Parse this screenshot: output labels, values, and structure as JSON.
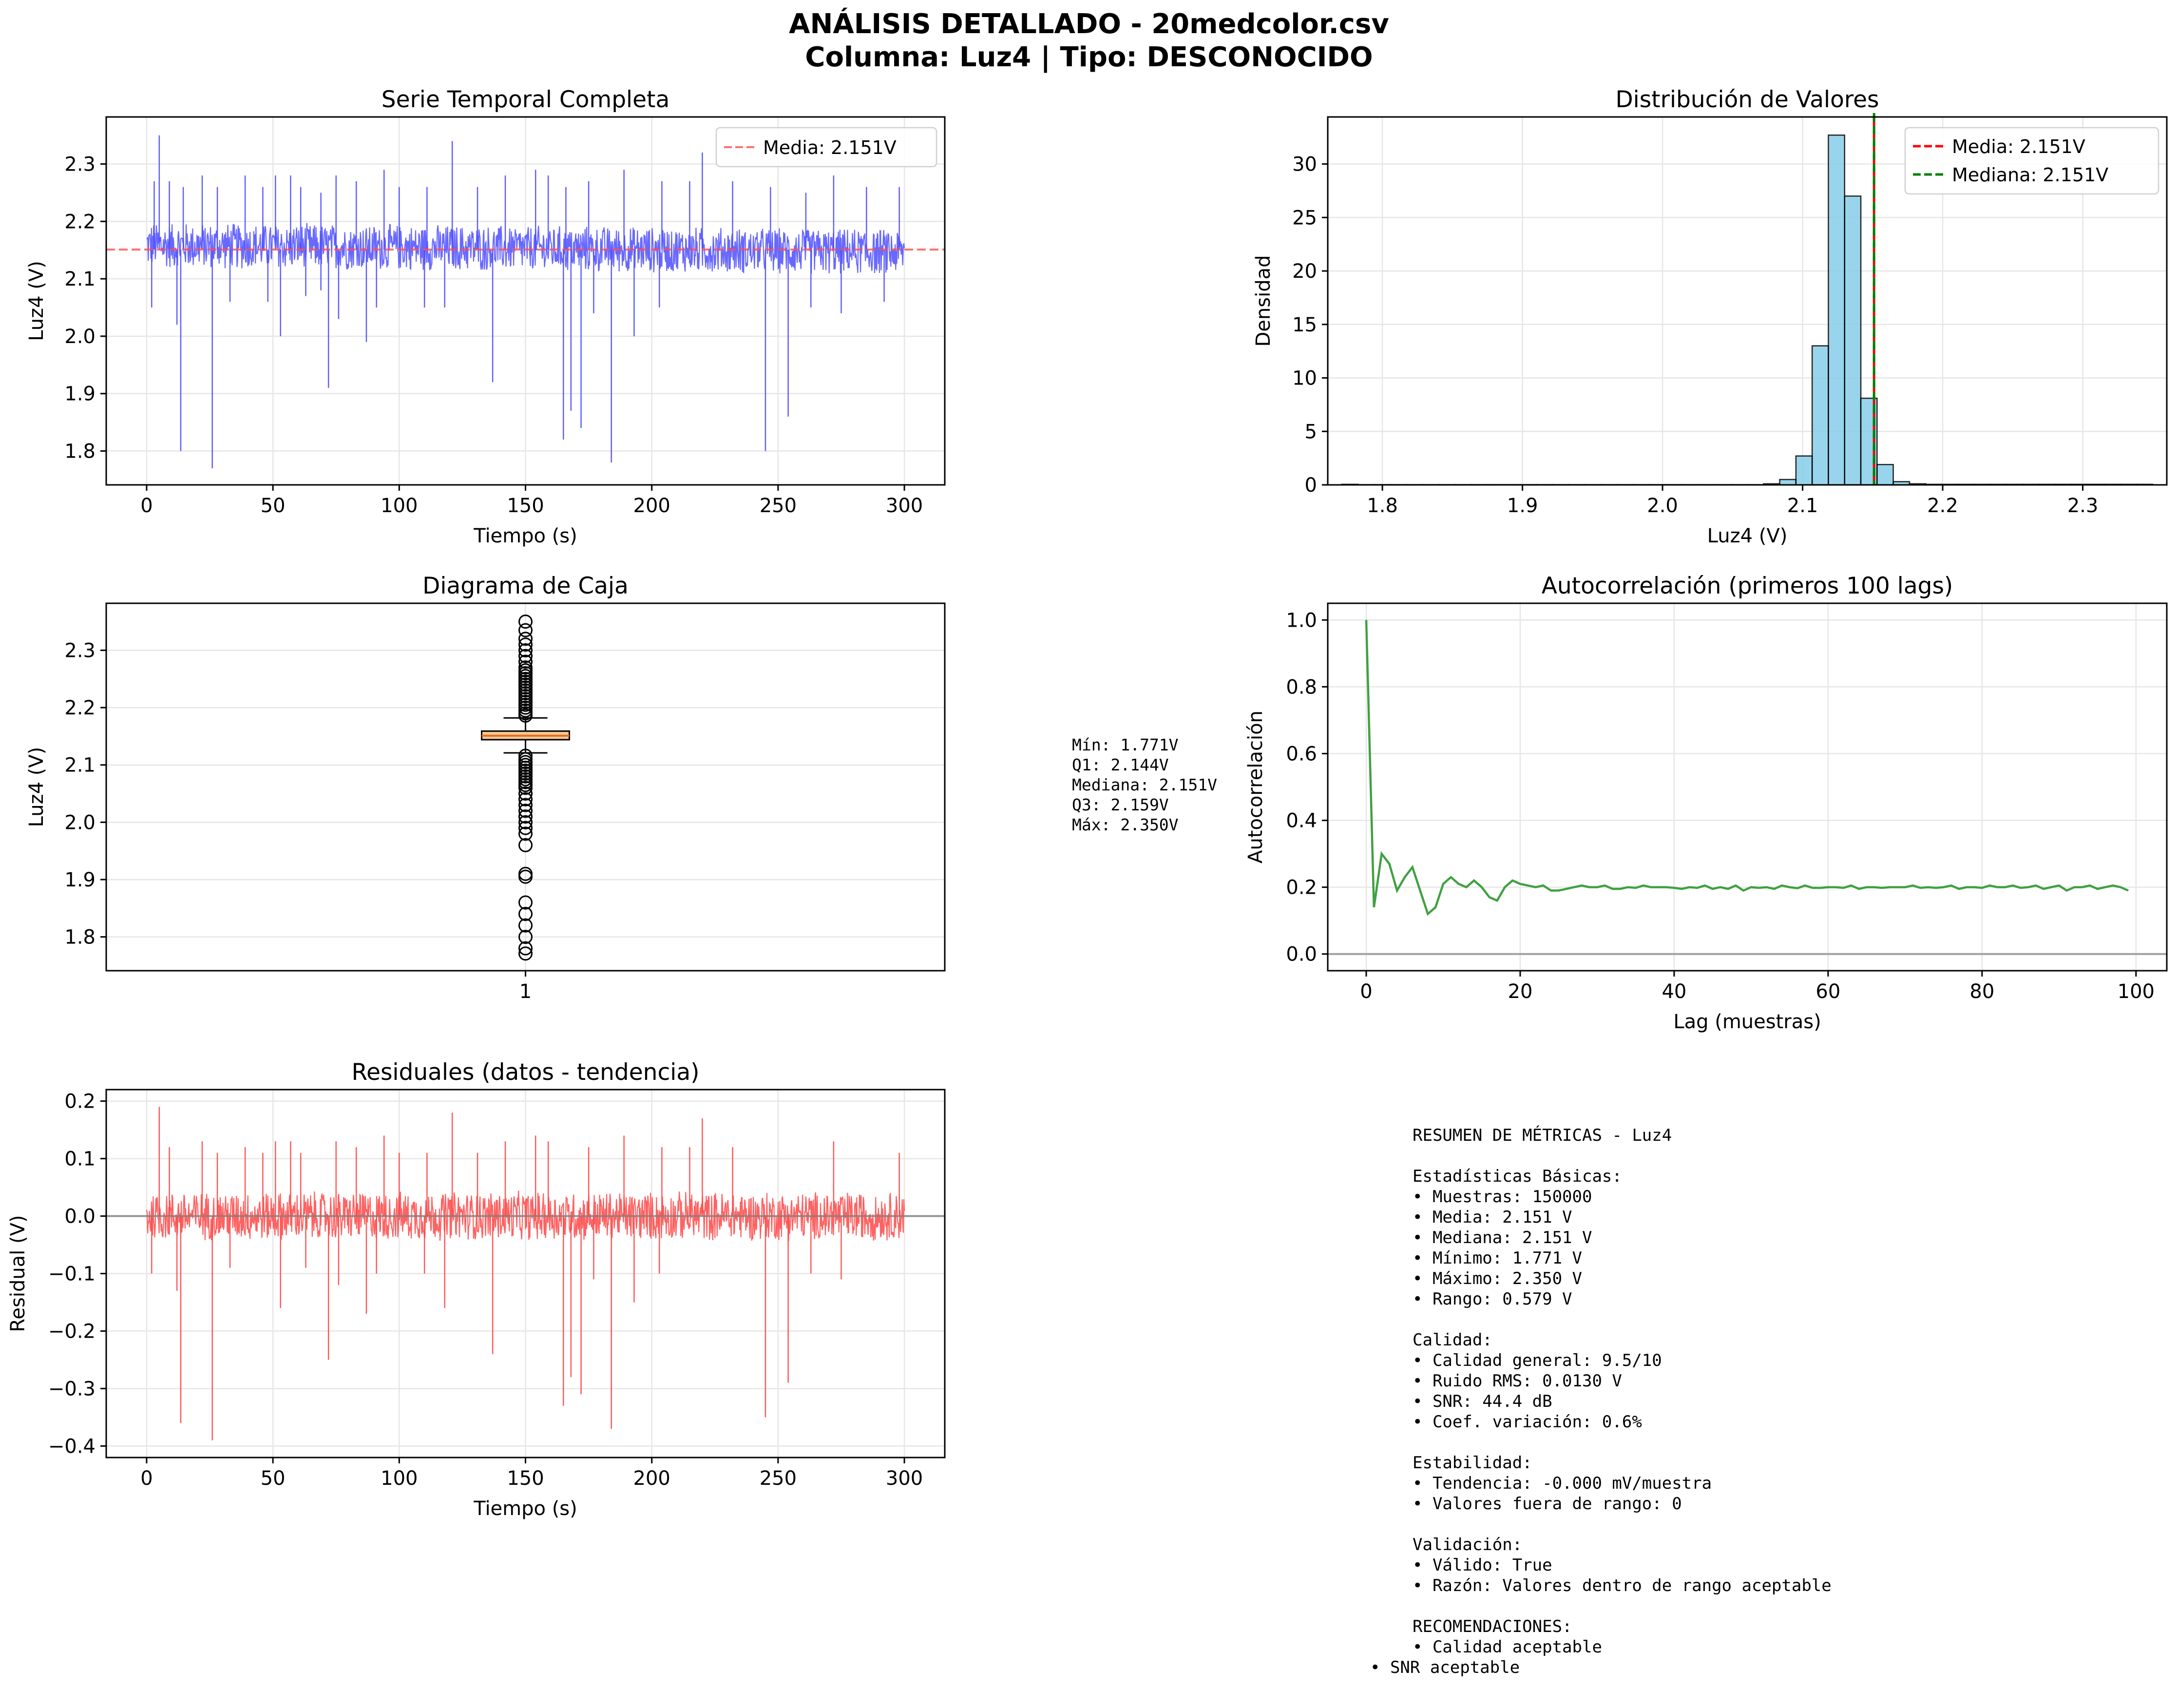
{
  "suptitle": {
    "line1": "ANÁLISIS DETALLADO - 20medcolor.csv",
    "line2": "Columna: Luz4 | Tipo: DESCONOCIDO"
  },
  "colors": {
    "series_blue": "#4d4dff",
    "mean_red": "#ff4d4d",
    "residual_red": "#ff4747",
    "hist_fill": "#87ceeb",
    "median_green": "#008000",
    "acf_green": "#40a040",
    "box_fill": "#f6c796"
  },
  "chart_data": [
    {
      "id": "series",
      "type": "line",
      "title": "Serie Temporal Completa",
      "xlabel": "Tiempo (s)",
      "ylabel": "Luz4 (V)",
      "xlim": [
        -16,
        316
      ],
      "ylim": [
        1.741,
        2.382
      ],
      "xticks": [
        0,
        50,
        100,
        150,
        200,
        250,
        300
      ],
      "yticks": [
        1.8,
        1.9,
        2.0,
        2.1,
        2.2,
        2.3
      ],
      "grid": true,
      "legend_position": "upper right",
      "series": [
        {
          "name": "Media: 2.151V",
          "kind": "hline",
          "value": 2.151,
          "style": "dashed",
          "color": "#ff4d4d"
        }
      ],
      "band": {
        "x": [
          0,
          300
        ],
        "low": 2.11,
        "high": 2.195
      },
      "spikes_up": [
        [
          3.0,
          2.27
        ],
        [
          5.0,
          2.35
        ],
        [
          9.0,
          2.27
        ],
        [
          14.5,
          2.26
        ],
        [
          22.0,
          2.28
        ],
        [
          28.0,
          2.26
        ],
        [
          39.0,
          2.28
        ],
        [
          46.0,
          2.26
        ],
        [
          51.0,
          2.28
        ],
        [
          57.0,
          2.28
        ],
        [
          61.0,
          2.26
        ],
        [
          69.0,
          2.25
        ],
        [
          75.0,
          2.28
        ],
        [
          83.0,
          2.27
        ],
        [
          94.0,
          2.29
        ],
        [
          100.0,
          2.26
        ],
        [
          111.0,
          2.26
        ],
        [
          121.0,
          2.34
        ],
        [
          131.0,
          2.26
        ],
        [
          142.0,
          2.28
        ],
        [
          154.0,
          2.29
        ],
        [
          159.0,
          2.28
        ],
        [
          166.0,
          2.26
        ],
        [
          175.0,
          2.27
        ],
        [
          189.0,
          2.29
        ],
        [
          204.0,
          2.27
        ],
        [
          215.0,
          2.27
        ],
        [
          220.0,
          2.32
        ],
        [
          232.0,
          2.27
        ],
        [
          247.0,
          2.26
        ],
        [
          261.0,
          2.25
        ],
        [
          272.0,
          2.28
        ],
        [
          285.0,
          2.26
        ],
        [
          298.0,
          2.26
        ]
      ],
      "spikes_down": [
        [
          2.0,
          2.05
        ],
        [
          12.0,
          2.02
        ],
        [
          13.5,
          1.8
        ],
        [
          26.0,
          1.77
        ],
        [
          33.0,
          2.06
        ],
        [
          48.0,
          2.06
        ],
        [
          53.0,
          2.0
        ],
        [
          63.0,
          2.07
        ],
        [
          69.0,
          2.08
        ],
        [
          72.0,
          1.91
        ],
        [
          76.0,
          2.03
        ],
        [
          87.0,
          1.99
        ],
        [
          91.0,
          2.05
        ],
        [
          110.0,
          2.05
        ],
        [
          118.0,
          2.05
        ],
        [
          137.0,
          1.92
        ],
        [
          165.0,
          1.82
        ],
        [
          168.0,
          1.87
        ],
        [
          172.0,
          1.84
        ],
        [
          177.0,
          2.04
        ],
        [
          184.0,
          1.78
        ],
        [
          193.0,
          2.0
        ],
        [
          203.0,
          2.05
        ],
        [
          245.0,
          1.8
        ],
        [
          254.0,
          1.86
        ],
        [
          263.0,
          2.05
        ],
        [
          275.0,
          2.04
        ],
        [
          292.0,
          2.06
        ]
      ]
    },
    {
      "id": "hist",
      "type": "bar",
      "title": "Distribución de Valores",
      "xlabel": "Luz4 (V)",
      "ylabel": "Densidad",
      "xlim": [
        1.761,
        2.36
      ],
      "ylim": [
        0,
        34.4
      ],
      "xticks": [
        1.8,
        1.9,
        2.0,
        2.1,
        2.2,
        2.3
      ],
      "yticks": [
        0,
        5,
        10,
        15,
        20,
        25,
        30
      ],
      "grid": true,
      "legend_position": "upper right",
      "bin_start": 1.771,
      "bin_width": 0.01158,
      "values": [
        0.05,
        0.02,
        0.02,
        0.02,
        0.02,
        0.02,
        0.02,
        0.02,
        0.02,
        0.02,
        0.02,
        0.02,
        0.02,
        0.02,
        0.02,
        0.02,
        0.02,
        0.02,
        0.02,
        0.02,
        0.02,
        0.02,
        0.02,
        0.02,
        0.02,
        0.02,
        0.1,
        0.5,
        2.7,
        13.0,
        32.7,
        27.0,
        8.1,
        1.9,
        0.3,
        0.1,
        0.05,
        0.05,
        0.05,
        0.05,
        0.05,
        0.05,
        0.05,
        0.05,
        0.05,
        0.05,
        0.05,
        0.05,
        0.05,
        0.05
      ],
      "series": [
        {
          "name": "Media: 2.151V",
          "kind": "vline",
          "value": 2.151,
          "style": "dashed",
          "color": "#ff0000"
        },
        {
          "name": "Mediana: 2.151V",
          "kind": "vline",
          "value": 2.151,
          "style": "dashed",
          "color": "#008000"
        }
      ]
    },
    {
      "id": "box",
      "type": "box",
      "title": "Diagrama de Caja",
      "ylabel": "Luz4 (V)",
      "xticks": [
        "1"
      ],
      "ylim": [
        1.741,
        2.382
      ],
      "yticks": [
        1.8,
        1.9,
        2.0,
        2.1,
        2.2,
        2.3
      ],
      "grid": true,
      "q1": 2.144,
      "median": 2.151,
      "q3": 2.159,
      "whisker_low": 2.121,
      "whisker_high": 2.182,
      "outliers": [
        2.35,
        2.335,
        2.32,
        2.31,
        2.3,
        2.29,
        2.28,
        2.27,
        2.265,
        2.26,
        2.255,
        2.25,
        2.245,
        2.24,
        2.235,
        2.23,
        2.225,
        2.22,
        2.215,
        2.21,
        2.205,
        2.2,
        2.195,
        2.19,
        2.186,
        2.116,
        2.11,
        2.105,
        2.1,
        2.095,
        2.09,
        2.085,
        2.08,
        2.075,
        2.07,
        2.065,
        2.06,
        2.05,
        2.04,
        2.03,
        2.02,
        2.01,
        2.0,
        1.99,
        1.98,
        1.96,
        1.91,
        1.905,
        1.86,
        1.84,
        1.82,
        1.8,
        1.78,
        1.771
      ]
    },
    {
      "id": "acf",
      "type": "line",
      "title": "Autocorrelación (primeros 100 lags)",
      "xlabel": "Lag (muestras)",
      "ylabel": "Autocorrelación",
      "xlim": [
        -5,
        104
      ],
      "ylim": [
        -0.05,
        1.05
      ],
      "xticks": [
        0,
        20,
        40,
        60,
        80,
        100
      ],
      "yticks": [
        0.0,
        0.2,
        0.4,
        0.6,
        0.8,
        1.0
      ],
      "grid": true,
      "series": [
        {
          "name": "",
          "values": [
            1.0,
            0.14,
            0.3,
            0.27,
            0.19,
            0.23,
            0.26,
            0.19,
            0.12,
            0.14,
            0.21,
            0.23,
            0.21,
            0.2,
            0.22,
            0.2,
            0.17,
            0.16,
            0.2,
            0.22,
            0.21,
            0.205,
            0.2,
            0.205,
            0.19,
            0.19,
            0.195,
            0.2,
            0.205,
            0.2,
            0.2,
            0.205,
            0.195,
            0.195,
            0.2,
            0.198,
            0.205,
            0.2,
            0.2,
            0.2,
            0.198,
            0.195,
            0.2,
            0.198,
            0.205,
            0.195,
            0.2,
            0.195,
            0.205,
            0.19,
            0.2,
            0.198,
            0.2,
            0.195,
            0.205,
            0.2,
            0.197,
            0.205,
            0.198,
            0.198,
            0.2,
            0.2,
            0.198,
            0.205,
            0.195,
            0.2,
            0.2,
            0.198,
            0.2,
            0.2,
            0.2,
            0.205,
            0.198,
            0.2,
            0.198,
            0.2,
            0.205,
            0.195,
            0.2,
            0.2,
            0.198,
            0.205,
            0.2,
            0.2,
            0.205,
            0.198,
            0.2,
            0.205,
            0.195,
            0.2,
            0.205,
            0.19,
            0.2,
            0.2,
            0.205,
            0.195,
            0.2,
            0.205,
            0.2,
            0.19
          ]
        }
      ]
    },
    {
      "id": "resid",
      "type": "line",
      "title": "Residuales (datos - tendencia)",
      "xlabel": "Tiempo (s)",
      "ylabel": "Residual (V)",
      "xlim": [
        -16,
        316
      ],
      "ylim": [
        -0.42,
        0.22
      ],
      "xticks": [
        0,
        50,
        100,
        150,
        200,
        250,
        300
      ],
      "yticks": [
        -0.4,
        -0.3,
        -0.2,
        -0.1,
        0.0,
        0.1,
        0.2
      ],
      "grid": true,
      "band": {
        "x": [
          0,
          300
        ],
        "low": -0.045,
        "high": 0.045
      },
      "spikes_up": [
        [
          5.0,
          0.19
        ],
        [
          9.0,
          0.12
        ],
        [
          22.0,
          0.13
        ],
        [
          28.0,
          0.11
        ],
        [
          39.0,
          0.12
        ],
        [
          46.0,
          0.11
        ],
        [
          51.0,
          0.13
        ],
        [
          57.0,
          0.13
        ],
        [
          61.0,
          0.11
        ],
        [
          75.0,
          0.13
        ],
        [
          83.0,
          0.12
        ],
        [
          94.0,
          0.14
        ],
        [
          100.0,
          0.11
        ],
        [
          111.0,
          0.11
        ],
        [
          121.0,
          0.18
        ],
        [
          131.0,
          0.11
        ],
        [
          142.0,
          0.13
        ],
        [
          154.0,
          0.14
        ],
        [
          159.0,
          0.13
        ],
        [
          175.0,
          0.12
        ],
        [
          189.0,
          0.14
        ],
        [
          204.0,
          0.12
        ],
        [
          215.0,
          0.12
        ],
        [
          220.0,
          0.17
        ],
        [
          232.0,
          0.12
        ],
        [
          272.0,
          0.13
        ],
        [
          298.0,
          0.11
        ]
      ],
      "spikes_down": [
        [
          2.0,
          -0.1
        ],
        [
          12.0,
          -0.13
        ],
        [
          13.5,
          -0.36
        ],
        [
          26.0,
          -0.39
        ],
        [
          33.0,
          -0.09
        ],
        [
          53.0,
          -0.16
        ],
        [
          63.0,
          -0.09
        ],
        [
          72.0,
          -0.25
        ],
        [
          76.0,
          -0.12
        ],
        [
          87.0,
          -0.17
        ],
        [
          91.0,
          -0.1
        ],
        [
          110.0,
          -0.1
        ],
        [
          118.0,
          -0.16
        ],
        [
          137.0,
          -0.24
        ],
        [
          165.0,
          -0.33
        ],
        [
          168.0,
          -0.28
        ],
        [
          172.0,
          -0.31
        ],
        [
          177.0,
          -0.11
        ],
        [
          184.0,
          -0.37
        ],
        [
          193.0,
          -0.15
        ],
        [
          203.0,
          -0.1
        ],
        [
          245.0,
          -0.35
        ],
        [
          254.0,
          -0.29
        ],
        [
          263.0,
          -0.1
        ],
        [
          275.0,
          -0.11
        ]
      ]
    }
  ],
  "box_stats": [
    "Mín: 1.771V",
    "Q1: 2.144V",
    "Mediana: 2.151V",
    "Q3: 2.159V",
    "Máx: 2.350V"
  ],
  "summary": [
    "RESUMEN DE MÉTRICAS - Luz4",
    "",
    "Estadísticas Básicas:",
    "• Muestras: 150000",
    "• Media: 2.151 V",
    "• Mediana: 2.151 V",
    "• Mínimo: 1.771 V",
    "• Máximo: 2.350 V",
    "• Rango: 0.579 V",
    "",
    "Calidad:",
    "• Calidad general: 9.5/10",
    "• Ruido RMS: 0.0130 V",
    "• SNR: 44.4 dB",
    "• Coef. variación: 0.6%",
    "",
    "Estabilidad:",
    "• Tendencia: -0.000 mV/muestra",
    "• Valores fuera de rango: 0",
    "",
    "Validación:",
    "• Válido: True",
    "• Razón: Valores dentro de rango aceptable",
    "",
    "RECOMENDACIONES:",
    "• Calidad aceptable",
    "• SNR aceptable"
  ]
}
